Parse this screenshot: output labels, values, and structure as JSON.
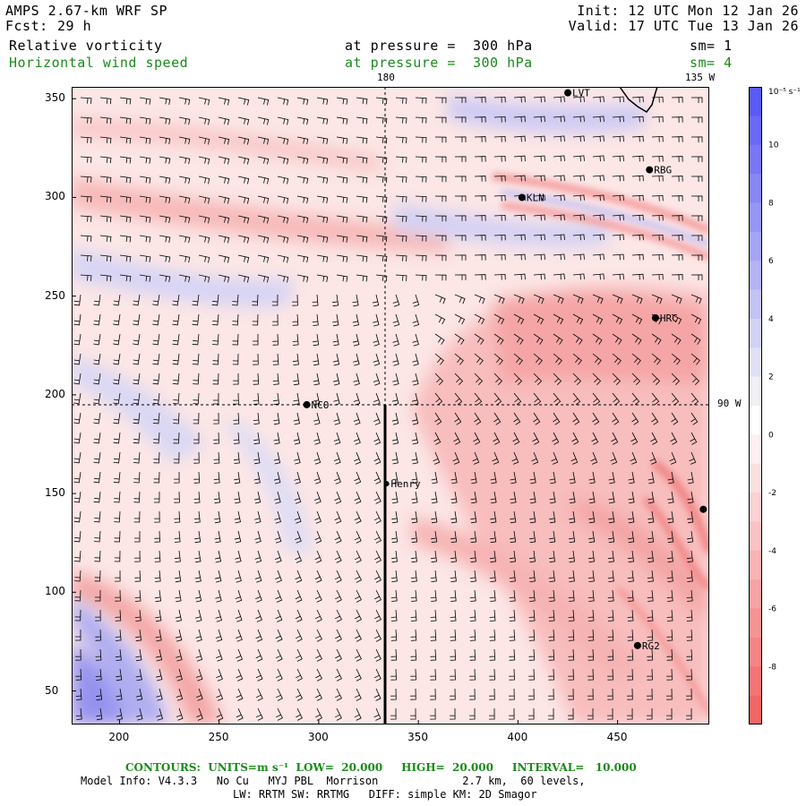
{
  "header": {
    "model_title": "AMPS 2.67-km WRF SP",
    "forecast_label": "Fcst:",
    "forecast_value": "29 h",
    "init": "Init: 12 UTC Mon 12 Jan 26",
    "valid": "Valid: 17 UTC Tue 13 Jan 26",
    "field1_name": "Relative vorticity",
    "field1_level": "at pressure =  300 hPa",
    "field1_sm": "sm= 1",
    "field2_name": "Horizontal wind speed",
    "field2_level": "at pressure =  300 hPa",
    "field2_sm": "sm= 4"
  },
  "map": {
    "meridian_labels": [
      "180",
      "135 W",
      "90 W"
    ],
    "x_ticks": [
      200,
      250,
      300,
      350,
      400,
      450
    ],
    "y_ticks": [
      50,
      100,
      150,
      200,
      250,
      300,
      350
    ],
    "x_range": [
      176,
      496
    ],
    "y_range": [
      33,
      356
    ],
    "stations": [
      {
        "name": "LVT",
        "x": 425,
        "y": 353
      },
      {
        "name": "RBG",
        "x": 466,
        "y": 314
      },
      {
        "name": "KLN",
        "x": 402,
        "y": 300
      },
      {
        "name": "HRC",
        "x": 469,
        "y": 239
      },
      {
        "name": "NCO",
        "x": 294,
        "y": 195
      },
      {
        "name": "Henry",
        "x": 334,
        "y": 155
      },
      {
        "name": "",
        "x": 493,
        "y": 142
      },
      {
        "name": "RG2",
        "x": 460,
        "y": 73
      }
    ],
    "colors": {
      "positive": "#5a5af5",
      "negative": "#f26666",
      "neutral": "#ffffff"
    }
  },
  "colorbar": {
    "unit_label": "10⁻⁵ s⁻¹",
    "tick_labels": [
      "10",
      "8",
      "6",
      "4",
      "2",
      "0",
      "-2",
      "-4",
      "-6",
      "-8"
    ],
    "levels": [
      11,
      10,
      9,
      8,
      7,
      6,
      5,
      4,
      3,
      2,
      1,
      0,
      -1,
      -2,
      -3,
      -4,
      -5,
      -6,
      -7,
      -8,
      -9,
      -10
    ]
  },
  "footer": {
    "contours": "CONTOURS:  UNITS=m s⁻¹  LOW=  20.000     HIGH=  20.000     INTERVAL=   10.000",
    "model_info": "Model Info: V4.3.3   No Cu   MYJ PBL  Morrison             2.7 km,  60 levels,",
    "physics": "LW: RRTM SW: RRTMG   DIFF: simple KM: 2D Smagor"
  }
}
